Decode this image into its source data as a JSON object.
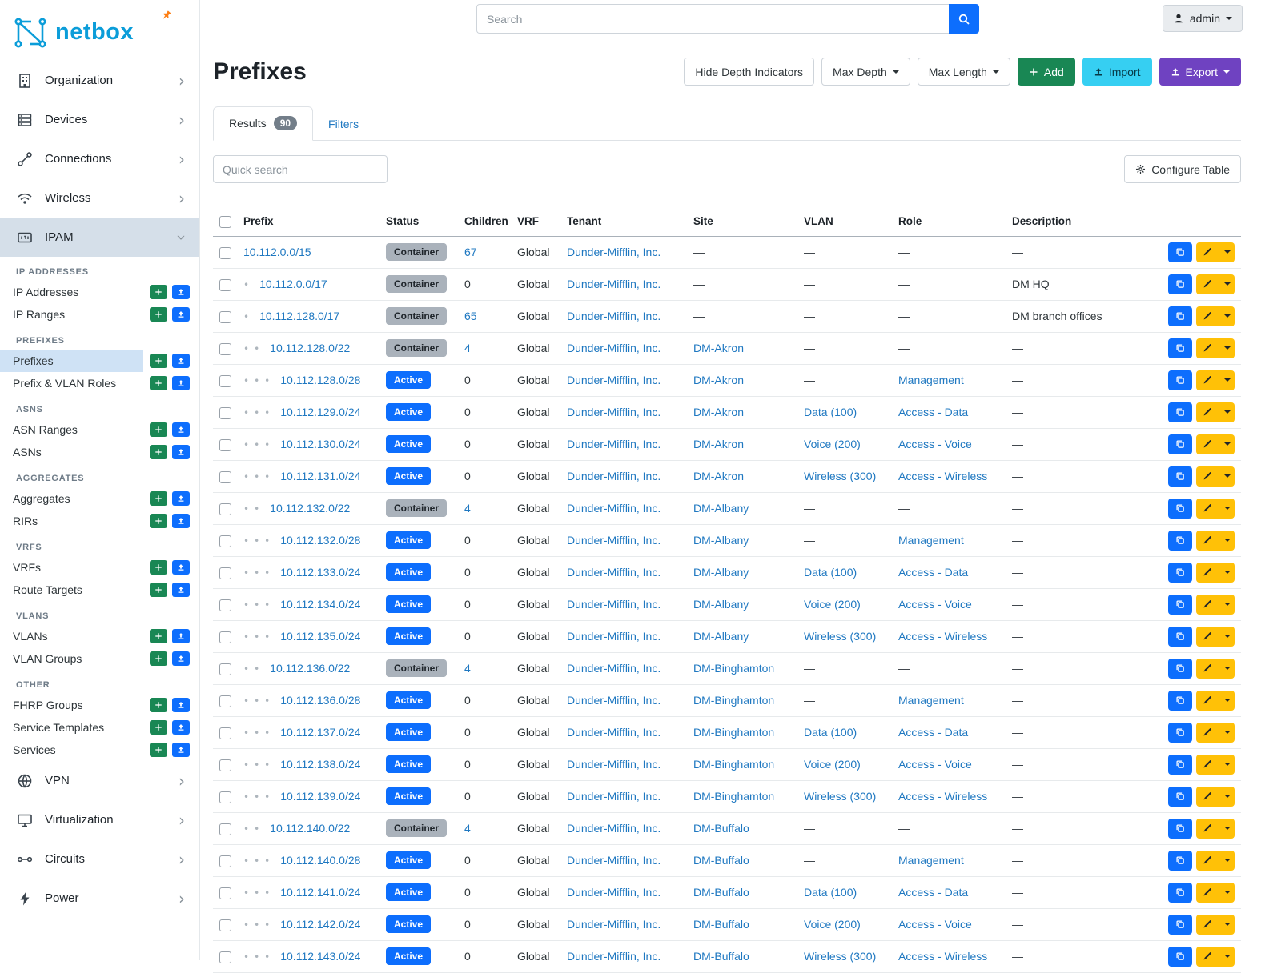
{
  "colors": {
    "brand": "#0b9dd9",
    "link": "#1f78c1",
    "active_badge": "#0d6efd",
    "container_badge": "#aab2bb",
    "add_button": "#198754",
    "import_button": "#36cff2",
    "export_button": "#6f42c1",
    "edit_button": "#ffc107",
    "copy_button": "#0d6efd",
    "upload_button": "#0d6efd",
    "plus_button": "#198754",
    "sidebar_active_bg": "#d5dfe9",
    "selected_item_bg": "#cfe2f5",
    "search_button": "#0d6efd",
    "pin_icon": "#fd7e14"
  },
  "topbar": {
    "search_placeholder": "Search",
    "username": "admin"
  },
  "sidebar": {
    "brand": "netbox",
    "top_items": [
      {
        "label": "Organization",
        "icon": "building"
      },
      {
        "label": "Devices",
        "icon": "rack"
      },
      {
        "label": "Connections",
        "icon": "cable"
      },
      {
        "label": "Wireless",
        "icon": "wifi"
      }
    ],
    "ipam": {
      "label": "IPAM",
      "icon": "ipam"
    },
    "ipam_groups": [
      {
        "header": "IP ADDRESSES",
        "items": [
          {
            "label": "IP Addresses"
          },
          {
            "label": "IP Ranges"
          }
        ]
      },
      {
        "header": "PREFIXES",
        "items": [
          {
            "label": "Prefixes",
            "active": true
          },
          {
            "label": "Prefix & VLAN Roles"
          }
        ]
      },
      {
        "header": "ASNS",
        "items": [
          {
            "label": "ASN Ranges"
          },
          {
            "label": "ASNs"
          }
        ]
      },
      {
        "header": "AGGREGATES",
        "items": [
          {
            "label": "Aggregates"
          },
          {
            "label": "RIRs"
          }
        ]
      },
      {
        "header": "VRFS",
        "items": [
          {
            "label": "VRFs"
          },
          {
            "label": "Route Targets"
          }
        ]
      },
      {
        "header": "VLANS",
        "items": [
          {
            "label": "VLANs"
          },
          {
            "label": "VLAN Groups"
          }
        ]
      },
      {
        "header": "OTHER",
        "items": [
          {
            "label": "FHRP Groups"
          },
          {
            "label": "Service Templates"
          },
          {
            "label": "Services"
          }
        ]
      }
    ],
    "bottom_items": [
      {
        "label": "VPN",
        "icon": "vpn"
      },
      {
        "label": "Virtualization",
        "icon": "monitor"
      },
      {
        "label": "Circuits",
        "icon": "circuit"
      },
      {
        "label": "Power",
        "icon": "power"
      }
    ]
  },
  "header": {
    "title": "Prefixes",
    "hide_depth_label": "Hide Depth Indicators",
    "max_depth_label": "Max Depth",
    "max_length_label": "Max Length",
    "add_label": "Add",
    "import_label": "Import",
    "export_label": "Export"
  },
  "tabs": [
    {
      "label": "Results",
      "badge": "90",
      "active": true
    },
    {
      "label": "Filters",
      "active": false
    }
  ],
  "toolbar": {
    "quick_search_placeholder": "Quick search",
    "configure_label": "Configure Table"
  },
  "table": {
    "columns": [
      "Prefix",
      "Status",
      "Children",
      "VRF",
      "Tenant",
      "Site",
      "VLAN",
      "Role",
      "Description"
    ],
    "rows": [
      {
        "depth": 0,
        "prefix": "10.112.0.0/15",
        "status": "Container",
        "children": "67",
        "vrf": "Global",
        "tenant": "Dunder-Mifflin, Inc.",
        "site": "—",
        "vlan": "—",
        "role": "—",
        "description": "—"
      },
      {
        "depth": 1,
        "prefix": "10.112.0.0/17",
        "status": "Container",
        "children": "0",
        "vrf": "Global",
        "tenant": "Dunder-Mifflin, Inc.",
        "site": "—",
        "vlan": "—",
        "role": "—",
        "description": "DM HQ"
      },
      {
        "depth": 1,
        "prefix": "10.112.128.0/17",
        "status": "Container",
        "children": "65",
        "vrf": "Global",
        "tenant": "Dunder-Mifflin, Inc.",
        "site": "—",
        "vlan": "—",
        "role": "—",
        "description": "DM branch offices"
      },
      {
        "depth": 2,
        "prefix": "10.112.128.0/22",
        "status": "Container",
        "children": "4",
        "vrf": "Global",
        "tenant": "Dunder-Mifflin, Inc.",
        "site": "DM-Akron",
        "vlan": "—",
        "role": "—",
        "description": "—"
      },
      {
        "depth": 3,
        "prefix": "10.112.128.0/28",
        "status": "Active",
        "children": "0",
        "vrf": "Global",
        "tenant": "Dunder-Mifflin, Inc.",
        "site": "DM-Akron",
        "vlan": "—",
        "role": "Management",
        "description": "—"
      },
      {
        "depth": 3,
        "prefix": "10.112.129.0/24",
        "status": "Active",
        "children": "0",
        "vrf": "Global",
        "tenant": "Dunder-Mifflin, Inc.",
        "site": "DM-Akron",
        "vlan": "Data (100)",
        "role": "Access - Data",
        "description": "—"
      },
      {
        "depth": 3,
        "prefix": "10.112.130.0/24",
        "status": "Active",
        "children": "0",
        "vrf": "Global",
        "tenant": "Dunder-Mifflin, Inc.",
        "site": "DM-Akron",
        "vlan": "Voice (200)",
        "role": "Access - Voice",
        "description": "—"
      },
      {
        "depth": 3,
        "prefix": "10.112.131.0/24",
        "status": "Active",
        "children": "0",
        "vrf": "Global",
        "tenant": "Dunder-Mifflin, Inc.",
        "site": "DM-Akron",
        "vlan": "Wireless (300)",
        "role": "Access - Wireless",
        "description": "—"
      },
      {
        "depth": 2,
        "prefix": "10.112.132.0/22",
        "status": "Container",
        "children": "4",
        "vrf": "Global",
        "tenant": "Dunder-Mifflin, Inc.",
        "site": "DM-Albany",
        "vlan": "—",
        "role": "—",
        "description": "—"
      },
      {
        "depth": 3,
        "prefix": "10.112.132.0/28",
        "status": "Active",
        "children": "0",
        "vrf": "Global",
        "tenant": "Dunder-Mifflin, Inc.",
        "site": "DM-Albany",
        "vlan": "—",
        "role": "Management",
        "description": "—"
      },
      {
        "depth": 3,
        "prefix": "10.112.133.0/24",
        "status": "Active",
        "children": "0",
        "vrf": "Global",
        "tenant": "Dunder-Mifflin, Inc.",
        "site": "DM-Albany",
        "vlan": "Data (100)",
        "role": "Access - Data",
        "description": "—"
      },
      {
        "depth": 3,
        "prefix": "10.112.134.0/24",
        "status": "Active",
        "children": "0",
        "vrf": "Global",
        "tenant": "Dunder-Mifflin, Inc.",
        "site": "DM-Albany",
        "vlan": "Voice (200)",
        "role": "Access - Voice",
        "description": "—"
      },
      {
        "depth": 3,
        "prefix": "10.112.135.0/24",
        "status": "Active",
        "children": "0",
        "vrf": "Global",
        "tenant": "Dunder-Mifflin, Inc.",
        "site": "DM-Albany",
        "vlan": "Wireless (300)",
        "role": "Access - Wireless",
        "description": "—"
      },
      {
        "depth": 2,
        "prefix": "10.112.136.0/22",
        "status": "Container",
        "children": "4",
        "vrf": "Global",
        "tenant": "Dunder-Mifflin, Inc.",
        "site": "DM-Binghamton",
        "vlan": "—",
        "role": "—",
        "description": "—"
      },
      {
        "depth": 3,
        "prefix": "10.112.136.0/28",
        "status": "Active",
        "children": "0",
        "vrf": "Global",
        "tenant": "Dunder-Mifflin, Inc.",
        "site": "DM-Binghamton",
        "vlan": "—",
        "role": "Management",
        "description": "—"
      },
      {
        "depth": 3,
        "prefix": "10.112.137.0/24",
        "status": "Active",
        "children": "0",
        "vrf": "Global",
        "tenant": "Dunder-Mifflin, Inc.",
        "site": "DM-Binghamton",
        "vlan": "Data (100)",
        "role": "Access - Data",
        "description": "—"
      },
      {
        "depth": 3,
        "prefix": "10.112.138.0/24",
        "status": "Active",
        "children": "0",
        "vrf": "Global",
        "tenant": "Dunder-Mifflin, Inc.",
        "site": "DM-Binghamton",
        "vlan": "Voice (200)",
        "role": "Access - Voice",
        "description": "—"
      },
      {
        "depth": 3,
        "prefix": "10.112.139.0/24",
        "status": "Active",
        "children": "0",
        "vrf": "Global",
        "tenant": "Dunder-Mifflin, Inc.",
        "site": "DM-Binghamton",
        "vlan": "Wireless (300)",
        "role": "Access - Wireless",
        "description": "—"
      },
      {
        "depth": 2,
        "prefix": "10.112.140.0/22",
        "status": "Container",
        "children": "4",
        "vrf": "Global",
        "tenant": "Dunder-Mifflin, Inc.",
        "site": "DM-Buffalo",
        "vlan": "—",
        "role": "—",
        "description": "—"
      },
      {
        "depth": 3,
        "prefix": "10.112.140.0/28",
        "status": "Active",
        "children": "0",
        "vrf": "Global",
        "tenant": "Dunder-Mifflin, Inc.",
        "site": "DM-Buffalo",
        "vlan": "—",
        "role": "Management",
        "description": "—"
      },
      {
        "depth": 3,
        "prefix": "10.112.141.0/24",
        "status": "Active",
        "children": "0",
        "vrf": "Global",
        "tenant": "Dunder-Mifflin, Inc.",
        "site": "DM-Buffalo",
        "vlan": "Data (100)",
        "role": "Access - Data",
        "description": "—"
      },
      {
        "depth": 3,
        "prefix": "10.112.142.0/24",
        "status": "Active",
        "children": "0",
        "vrf": "Global",
        "tenant": "Dunder-Mifflin, Inc.",
        "site": "DM-Buffalo",
        "vlan": "Voice (200)",
        "role": "Access - Voice",
        "description": "—"
      },
      {
        "depth": 3,
        "prefix": "10.112.143.0/24",
        "status": "Active",
        "children": "0",
        "vrf": "Global",
        "tenant": "Dunder-Mifflin, Inc.",
        "site": "DM-Buffalo",
        "vlan": "Wireless (300)",
        "role": "Access - Wireless",
        "description": "—"
      }
    ]
  }
}
